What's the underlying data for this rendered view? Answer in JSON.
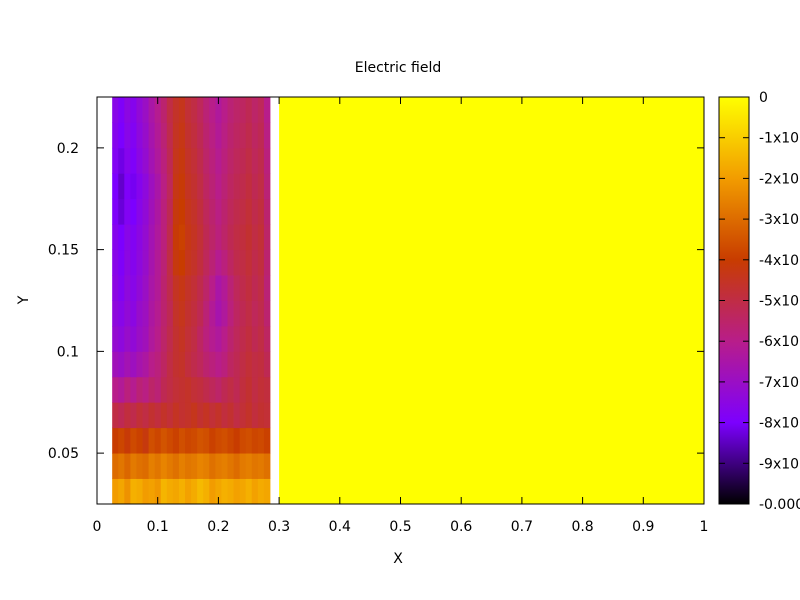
{
  "chart_data": {
    "type": "heatmap",
    "title": "Electric field",
    "xlabel": "X",
    "ylabel": "Y",
    "xlim": [
      0,
      1
    ],
    "ylim": [
      0.025,
      0.225
    ],
    "x_ticks": [
      {
        "value": 0,
        "label": "0"
      },
      {
        "value": 0.1,
        "label": "0.1"
      },
      {
        "value": 0.2,
        "label": "0.2"
      },
      {
        "value": 0.3,
        "label": "0.3"
      },
      {
        "value": 0.4,
        "label": "0.4"
      },
      {
        "value": 0.5,
        "label": "0.5"
      },
      {
        "value": 0.6,
        "label": "0.6"
      },
      {
        "value": 0.7,
        "label": "0.7"
      },
      {
        "value": 0.8,
        "label": "0.8"
      },
      {
        "value": 0.9,
        "label": "0.9"
      },
      {
        "value": 1,
        "label": "1"
      }
    ],
    "y_ticks": [
      {
        "value": 0.05,
        "label": "0.05"
      },
      {
        "value": 0.1,
        "label": "0.1"
      },
      {
        "value": 0.15,
        "label": "0.15"
      },
      {
        "value": 0.2,
        "label": "0.2"
      }
    ],
    "colorbar": {
      "palette": [
        "#000000",
        "#7c00ff",
        "#b81d8a",
        "#c83c00",
        "#f29c00",
        "#ffff00"
      ],
      "range": [
        -0.001,
        0
      ],
      "ticks": [
        {
          "value": 0,
          "label": "0"
        },
        {
          "value": -0.0001,
          "label": "-1x10"
        },
        {
          "value": -0.0002,
          "label": "-2x10"
        },
        {
          "value": -0.0003,
          "label": "-3x10"
        },
        {
          "value": -0.0004,
          "label": "-4x10"
        },
        {
          "value": -0.0005,
          "label": "-5x10"
        },
        {
          "value": -0.0006,
          "label": "-6x10"
        },
        {
          "value": -0.0007,
          "label": "-7x10"
        },
        {
          "value": -0.0008,
          "label": "-8x10"
        },
        {
          "value": -0.0009,
          "label": "-9x10"
        },
        {
          "value": -0.001,
          "label": "-0.000"
        }
      ]
    },
    "field": {
      "x_start": 0.025,
      "x_step": 0.01,
      "y_start": 0.025,
      "y_step": 0.0125,
      "fill_until_x": 0.3,
      "fill_value": 0,
      "rows": [
        [
          -0.0002,
          -0.00018,
          -0.00022,
          -0.00016,
          -0.00017,
          -0.0002,
          -0.00019,
          -0.00021,
          -0.00015,
          -0.00017,
          -0.00018,
          -0.00016,
          -0.00019,
          -0.00017,
          -0.00014,
          -0.00016,
          -0.0002,
          -0.00018,
          -0.00016,
          -0.00017,
          -0.00019,
          -0.00018,
          -0.00016,
          -0.00019,
          -0.00017,
          -0.00018
        ],
        [
          -0.0003,
          -0.00028,
          -0.00031,
          -0.00027,
          -0.00029,
          -0.0003,
          -0.00026,
          -0.00028,
          -0.00025,
          -0.00027,
          -0.00029,
          -0.00026,
          -0.00028,
          -0.00027,
          -0.00025,
          -0.00026,
          -0.00029,
          -0.00027,
          -0.00026,
          -0.00028,
          -0.0003,
          -0.00027,
          -0.00026,
          -0.00028,
          -0.00027,
          -0.00029
        ],
        [
          -0.0004,
          -0.00038,
          -0.00041,
          -0.00037,
          -0.00039,
          -0.00042,
          -0.00036,
          -0.00038,
          -0.00035,
          -0.00037,
          -0.00039,
          -0.00036,
          -0.00038,
          -0.00037,
          -0.00035,
          -0.00036,
          -0.00039,
          -0.00037,
          -0.00036,
          -0.00038,
          -0.0004,
          -0.00037,
          -0.00036,
          -0.00038,
          -0.00037,
          -0.00039
        ],
        [
          -0.0005,
          -0.00052,
          -0.00049,
          -0.00051,
          -0.00048,
          -0.0005,
          -0.00047,
          -0.00049,
          -0.00046,
          -0.00048,
          -0.00045,
          -0.00047,
          -0.00046,
          -0.00044,
          -0.00047,
          -0.00045,
          -0.00048,
          -0.00046,
          -0.00049,
          -0.00047,
          -0.0005,
          -0.00048,
          -0.00046,
          -0.00049,
          -0.00047,
          -0.00048
        ],
        [
          -0.0006,
          -0.00062,
          -0.00058,
          -0.00061,
          -0.00057,
          -0.00059,
          -0.00055,
          -0.00057,
          -0.00052,
          -0.0005,
          -0.00048,
          -0.00047,
          -0.00046,
          -0.00048,
          -0.00049,
          -0.00051,
          -0.00053,
          -0.00055,
          -0.00052,
          -0.0005,
          -0.00052,
          -0.00049,
          -0.00047,
          -0.0005,
          -0.00048,
          -0.00049
        ],
        [
          -0.00068,
          -0.0007,
          -0.00067,
          -0.00069,
          -0.00066,
          -0.00064,
          -0.0006,
          -0.00058,
          -0.00054,
          -0.0005,
          -0.00047,
          -0.00046,
          -0.00049,
          -0.00051,
          -0.00053,
          -0.00056,
          -0.00058,
          -0.0006,
          -0.00058,
          -0.00054,
          -0.00052,
          -0.0005,
          -0.00048,
          -0.0005,
          -0.00049,
          -0.00052
        ],
        [
          -0.00072,
          -0.00074,
          -0.00071,
          -0.00073,
          -0.0007,
          -0.00068,
          -0.00063,
          -0.0006,
          -0.00055,
          -0.00051,
          -0.00047,
          -0.00045,
          -0.00048,
          -0.0005,
          -0.00054,
          -0.00058,
          -0.00061,
          -0.00063,
          -0.0006,
          -0.00056,
          -0.00053,
          -0.00051,
          -0.00049,
          -0.00052,
          -0.0005,
          -0.00054
        ],
        [
          -0.00074,
          -0.00076,
          -0.00073,
          -0.00075,
          -0.00071,
          -0.00069,
          -0.00064,
          -0.00061,
          -0.00056,
          -0.00052,
          -0.00046,
          -0.00044,
          -0.00047,
          -0.00049,
          -0.00052,
          -0.00057,
          -0.00062,
          -0.00066,
          -0.00063,
          -0.00058,
          -0.00054,
          -0.00052,
          -0.0005,
          -0.00053,
          -0.00051,
          -0.00056
        ],
        [
          -0.00075,
          -0.00078,
          -0.00074,
          -0.00076,
          -0.00073,
          -0.0007,
          -0.00065,
          -0.00062,
          -0.00056,
          -0.00051,
          -0.00045,
          -0.00043,
          -0.00046,
          -0.00048,
          -0.00051,
          -0.00055,
          -0.0006,
          -0.00065,
          -0.00062,
          -0.00057,
          -0.00053,
          -0.00051,
          -0.00049,
          -0.00052,
          -0.0005,
          -0.00057
        ],
        [
          -0.00076,
          -0.00079,
          -0.00075,
          -0.00077,
          -0.00074,
          -0.00071,
          -0.00066,
          -0.00062,
          -0.00057,
          -0.0005,
          -0.00042,
          -0.0004,
          -0.00044,
          -0.00046,
          -0.00049,
          -0.00053,
          -0.00057,
          -0.00061,
          -0.00058,
          -0.00054,
          -0.00051,
          -0.0005,
          -0.00048,
          -0.00051,
          -0.00049,
          -0.00056
        ],
        [
          -0.00077,
          -0.0008,
          -0.00076,
          -0.00078,
          -0.00075,
          -0.00072,
          -0.00067,
          -0.00063,
          -0.00058,
          -0.00051,
          -0.00041,
          -0.00039,
          -0.00043,
          -0.00045,
          -0.00048,
          -0.00052,
          -0.00055,
          -0.00058,
          -0.00055,
          -0.00052,
          -0.0005,
          -0.00049,
          -0.00047,
          -0.0005,
          -0.00048,
          -0.00055
        ],
        [
          -0.00079,
          -0.00083,
          -0.00078,
          -0.0008,
          -0.00076,
          -0.00073,
          -0.00068,
          -0.00064,
          -0.00058,
          -0.00052,
          -0.00042,
          -0.0004,
          -0.00044,
          -0.00046,
          -0.00049,
          -0.00053,
          -0.00056,
          -0.00059,
          -0.00056,
          -0.00053,
          -0.00051,
          -0.0005,
          -0.00048,
          -0.00051,
          -0.00049,
          -0.00056
        ],
        [
          -0.0008,
          -0.00084,
          -0.00079,
          -0.00081,
          -0.00077,
          -0.00074,
          -0.00069,
          -0.00065,
          -0.00059,
          -0.00053,
          -0.00043,
          -0.00041,
          -0.00045,
          -0.00047,
          -0.0005,
          -0.00054,
          -0.00057,
          -0.0006,
          -0.00057,
          -0.00054,
          -0.00052,
          -0.00051,
          -0.00049,
          -0.00052,
          -0.0005,
          -0.00057
        ],
        [
          -0.00078,
          -0.00082,
          -0.00077,
          -0.00079,
          -0.00075,
          -0.00072,
          -0.00067,
          -0.00063,
          -0.00058,
          -0.00052,
          -0.00044,
          -0.00042,
          -0.00046,
          -0.00048,
          -0.00051,
          -0.00055,
          -0.00058,
          -0.00061,
          -0.00058,
          -0.00055,
          -0.00053,
          -0.00052,
          -0.0005,
          -0.00053,
          -0.00051,
          -0.00058
        ],
        [
          -0.00077,
          -0.0008,
          -0.00076,
          -0.00078,
          -0.00074,
          -0.00071,
          -0.00066,
          -0.00062,
          -0.00057,
          -0.00051,
          -0.00045,
          -0.00043,
          -0.00047,
          -0.00049,
          -0.00052,
          -0.00056,
          -0.00059,
          -0.00062,
          -0.00059,
          -0.00056,
          -0.00054,
          -0.00053,
          -0.00051,
          -0.00054,
          -0.00052,
          -0.00059
        ],
        [
          -0.00076,
          -0.00079,
          -0.00075,
          -0.00077,
          -0.00073,
          -0.0007,
          -0.00065,
          -0.00061,
          -0.00056,
          -0.0005,
          -0.00046,
          -0.00044,
          -0.00048,
          -0.0005,
          -0.00053,
          -0.00057,
          -0.0006,
          -0.00063,
          -0.0006,
          -0.00057,
          -0.00055,
          -0.00054,
          -0.00052,
          -0.00055,
          -0.00053,
          -0.0006
        ]
      ]
    }
  }
}
